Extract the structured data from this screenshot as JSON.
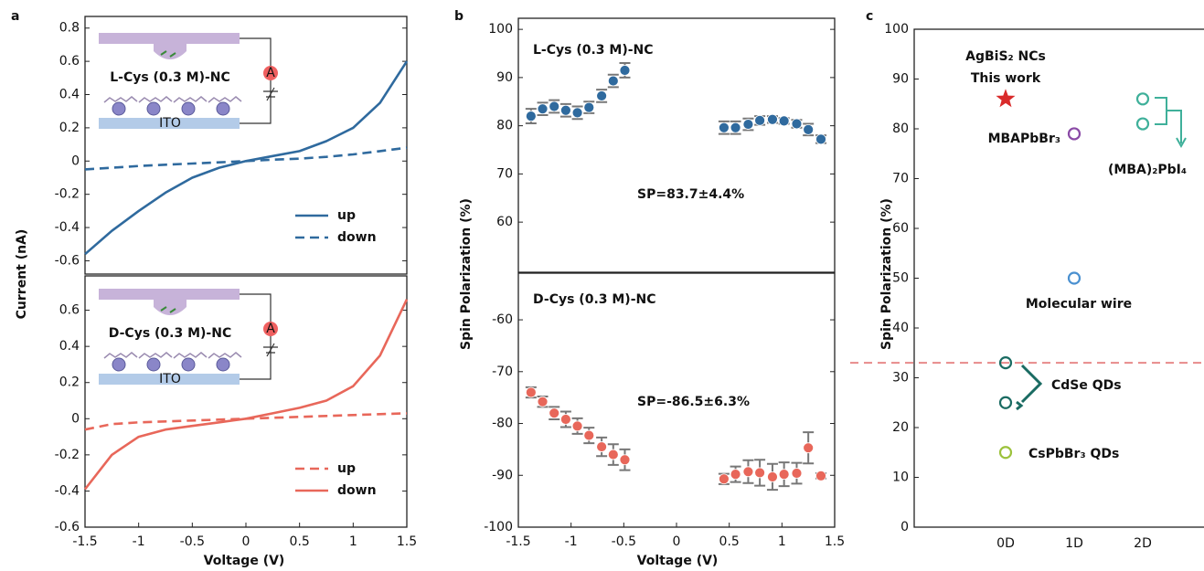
{
  "chart_data": [
    {
      "type": "line",
      "panel": "a",
      "ylabel": "Current (nA)",
      "xlim": [
        -1.5,
        1.5
      ],
      "ylim": [
        -0.68,
        0.87
      ],
      "yticks": [
        -0.6,
        -0.4,
        -0.2,
        0,
        0.2,
        0.4,
        0.6,
        0.8
      ],
      "x": [
        -1.5,
        -1.25,
        -1,
        -0.75,
        -0.5,
        -0.25,
        0,
        0.25,
        0.5,
        0.75,
        1,
        1.25,
        1.5
      ],
      "series": [
        {
          "name": "up",
          "color": "#2f6a9e",
          "dash": false,
          "values": [
            -0.56,
            -0.42,
            -0.3,
            -0.19,
            -0.1,
            -0.04,
            0,
            0.03,
            0.06,
            0.12,
            0.2,
            0.35,
            0.6
          ]
        },
        {
          "name": "down",
          "color": "#2f6a9e",
          "dash": true,
          "values": [
            -0.05,
            -0.04,
            -0.03,
            -0.022,
            -0.015,
            -0.008,
            0,
            0.008,
            0.015,
            0.025,
            0.04,
            0.06,
            0.08
          ]
        }
      ],
      "legend": "lower right",
      "annotations": [
        "L-Cys (0.3 M)-NC",
        "A",
        "ITO"
      ]
    },
    {
      "type": "line",
      "xlabel": "Voltage (V)",
      "xlim": [
        -1.5,
        1.5
      ],
      "xticks": [
        -1.5,
        -1,
        -0.5,
        0,
        0.5,
        1,
        1.5
      ],
      "ylim": [
        -0.6,
        0.79
      ],
      "yticks": [
        -0.6,
        -0.4,
        -0.2,
        0,
        0.2,
        0.4,
        0.6
      ],
      "x": [
        -1.5,
        -1.25,
        -1,
        -0.75,
        -0.5,
        -0.25,
        0,
        0.25,
        0.5,
        0.75,
        1,
        1.25,
        1.5
      ],
      "series": [
        {
          "name": "up",
          "color": "#e8675a",
          "dash": true,
          "values": [
            -0.06,
            -0.03,
            -0.02,
            -0.015,
            -0.01,
            -0.005,
            0,
            0.005,
            0.01,
            0.015,
            0.02,
            0.025,
            0.03
          ]
        },
        {
          "name": "down",
          "color": "#e8675a",
          "dash": false,
          "values": [
            -0.39,
            -0.2,
            -0.1,
            -0.06,
            -0.04,
            -0.02,
            0,
            0.03,
            0.06,
            0.1,
            0.18,
            0.35,
            0.66
          ]
        }
      ],
      "legend": "lower right",
      "annotations": [
        "D-Cys (0.3 M)-NC",
        "A",
        "ITO"
      ]
    },
    {
      "type": "scatter",
      "panel": "b",
      "ylabel": "Spin Polarization (%)",
      "color": "#2f6a9e",
      "xlim": [
        -1.5,
        1.5
      ],
      "ylim": [
        49.6,
        102.3
      ],
      "yticks": [
        60,
        70,
        80,
        90,
        100
      ],
      "x": [
        -1.38,
        -1.27,
        -1.16,
        -1.05,
        -0.94,
        -0.83,
        -0.71,
        -0.6,
        -0.49,
        0.45,
        0.56,
        0.68,
        0.79,
        0.91,
        1.02,
        1.14,
        1.25,
        1.37
      ],
      "values": [
        82,
        83.5,
        84,
        83.2,
        82.7,
        83.8,
        86.2,
        89.3,
        91.5,
        79.6,
        79.6,
        80.3,
        81.1,
        81.3,
        81.0,
        80.4,
        79.2,
        77.2
      ],
      "errors": [
        1.5,
        1.3,
        1.3,
        1.3,
        1.3,
        1.2,
        1.3,
        1.3,
        1.5,
        1.3,
        1.3,
        1.2,
        0.9,
        0.7,
        0.6,
        0.8,
        1.2,
        0.8
      ],
      "annotations": [
        "L-Cys (0.3 M)-NC",
        "SP=83.7±4.4%"
      ]
    },
    {
      "type": "scatter",
      "xlabel": "Voltage (V)",
      "color": "#e8675a",
      "xlim": [
        -1.5,
        1.5
      ],
      "xticks": [
        -1.5,
        -1,
        -0.5,
        0,
        0.5,
        1,
        1.5
      ],
      "ylim": [
        -100,
        -51
      ],
      "yticks": [
        -100,
        -90,
        -80,
        -70,
        -60
      ],
      "x": [
        -1.38,
        -1.27,
        -1.16,
        -1.05,
        -0.94,
        -0.83,
        -0.71,
        -0.6,
        -0.49,
        0.45,
        0.56,
        0.68,
        0.79,
        0.91,
        1.02,
        1.14,
        1.25,
        1.37
      ],
      "values": [
        -74,
        -75.8,
        -78,
        -79.2,
        -80.5,
        -82.3,
        -84.5,
        -86,
        -87,
        -90.7,
        -89.8,
        -89.3,
        -89.5,
        -90.3,
        -89.8,
        -89.6,
        -84.7,
        -90.1
      ],
      "errors": [
        1,
        1,
        1.2,
        1.5,
        1.5,
        1.5,
        1.8,
        2,
        2,
        1,
        1.5,
        2.2,
        2.5,
        2.5,
        2.3,
        2,
        3,
        0.5
      ],
      "annotations": [
        "D-Cys (0.3 M)-NC",
        "SP=-86.5±6.3%"
      ]
    },
    {
      "type": "scatter",
      "panel": "c",
      "ylabel": "Spin Polarization (%)",
      "categories": [
        "0D",
        "1D",
        "2D"
      ],
      "ylim": [
        0,
        100
      ],
      "yticks": [
        0,
        10,
        20,
        30,
        40,
        50,
        60,
        70,
        80,
        90,
        100
      ],
      "series": [
        {
          "name": "AgBiS₂ NCs",
          "note": "This work",
          "color": "#d92b2b",
          "marker": "star",
          "x": [
            "0D"
          ],
          "values": [
            86
          ]
        },
        {
          "name": "MBAPbBr₃",
          "color": "#8a4aa6",
          "marker": "circle",
          "x": [
            "1D"
          ],
          "values": [
            79
          ]
        },
        {
          "name": "(MBA)₂PbI₄",
          "color": "#3fb09a",
          "marker": "circle",
          "x": [
            "2D",
            "2D"
          ],
          "values": [
            86,
            81
          ]
        },
        {
          "name": "Molecular wire",
          "color": "#4a90d0",
          "marker": "circle",
          "x": [
            "1D"
          ],
          "values": [
            50
          ]
        },
        {
          "name": "CdSe QDs",
          "color": "#1a6b62",
          "marker": "circle",
          "x": [
            "0D",
            "0D"
          ],
          "values": [
            33,
            25
          ]
        },
        {
          "name": "CsPbBr₃ QDs",
          "color": "#9cc23c",
          "marker": "circle",
          "x": [
            "0D"
          ],
          "values": [
            15
          ]
        }
      ],
      "reference_line": {
        "value": 33,
        "color": "#e88a8a"
      }
    }
  ]
}
